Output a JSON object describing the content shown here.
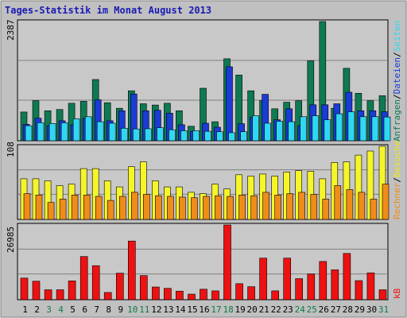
{
  "title": "Tages-Statistik im Monat August 2013",
  "colors": {
    "background": "#c0c0c0",
    "plot_background": "#c8c8c8",
    "title": "#1a1ab4",
    "weekend_day": "#0d7a45",
    "weekday": "#000000",
    "hits": "#0e7a52",
    "files": "#1a3bd6",
    "pages": "#2fd8f2",
    "visits": "#f5f52a",
    "visitors": "#f08c1a",
    "kbytes": "#ee1111"
  },
  "chart_data": [
    {
      "type": "bar",
      "panel": "top",
      "y_tick_label": "2387",
      "ylim": [
        0,
        2387
      ],
      "legend": [
        {
          "label": "Anfragen",
          "color_key": "hits"
        },
        {
          "label": "Dateien",
          "color_key": "files"
        },
        {
          "label": "Seiten",
          "color_key": "pages"
        }
      ],
      "categories": [
        "1",
        "2",
        "3",
        "4",
        "5",
        "6",
        "7",
        "8",
        "9",
        "10",
        "11",
        "12",
        "13",
        "14",
        "15",
        "16",
        "17",
        "18",
        "19",
        "20",
        "21",
        "22",
        "23",
        "24",
        "25",
        "26",
        "27",
        "28",
        "29",
        "30",
        "31"
      ],
      "series": [
        {
          "name": "Anfragen",
          "color_key": "hits",
          "values": [
            575,
            800,
            600,
            625,
            750,
            790,
            1225,
            760,
            650,
            1000,
            740,
            715,
            750,
            600,
            290,
            1050,
            380,
            1640,
            1315,
            1000,
            800,
            640,
            770,
            800,
            1600,
            2387,
            650,
            1450,
            950,
            800,
            900
          ]
        },
        {
          "name": "Dateien",
          "color_key": "files",
          "values": [
            330,
            450,
            300,
            400,
            320,
            450,
            820,
            400,
            600,
            935,
            600,
            610,
            550,
            320,
            190,
            350,
            270,
            1480,
            340,
            470,
            930,
            420,
            640,
            300,
            720,
            720,
            740,
            970,
            600,
            600,
            580
          ]
        },
        {
          "name": "Seiten",
          "color_key": "pages",
          "values": [
            300,
            360,
            345,
            360,
            440,
            480,
            380,
            350,
            250,
            235,
            240,
            260,
            220,
            200,
            200,
            190,
            180,
            160,
            180,
            500,
            350,
            390,
            380,
            480,
            500,
            420,
            540,
            580,
            480,
            480,
            475
          ]
        }
      ]
    },
    {
      "type": "bar",
      "panel": "middle",
      "y_tick_label": "108",
      "ylim": [
        0,
        108
      ],
      "legend": [
        {
          "label": "Besuche",
          "color_key": "visits"
        },
        {
          "label": "Rechner",
          "color_key": "visitors"
        }
      ],
      "categories": [
        "1",
        "2",
        "3",
        "4",
        "5",
        "6",
        "7",
        "8",
        "9",
        "10",
        "11",
        "12",
        "13",
        "14",
        "15",
        "16",
        "17",
        "18",
        "19",
        "20",
        "21",
        "22",
        "23",
        "24",
        "25",
        "26",
        "27",
        "28",
        "29",
        "30",
        "31"
      ],
      "series": [
        {
          "name": "Besuche",
          "color_key": "visits",
          "values": [
            60,
            60,
            57,
            50,
            52,
            75,
            75,
            57,
            48,
            78,
            85,
            57,
            48,
            48,
            40,
            38,
            52,
            45,
            66,
            64,
            67,
            64,
            70,
            72,
            71,
            60,
            84,
            85,
            95,
            101,
            108
          ]
        },
        {
          "name": "Rechner",
          "color_key": "visitors",
          "values": [
            38,
            36,
            25,
            30,
            36,
            36,
            34,
            28,
            34,
            40,
            37,
            35,
            34,
            33,
            32,
            34,
            35,
            34,
            36,
            35,
            40,
            36,
            38,
            40,
            37,
            30,
            50,
            44,
            40,
            30,
            52
          ]
        }
      ]
    },
    {
      "type": "bar",
      "panel": "bottom",
      "y_tick_label": "26985",
      "ylim": [
        0,
        26985
      ],
      "legend": [
        {
          "label": "kB",
          "color_key": "kbytes"
        }
      ],
      "categories": [
        "1",
        "2",
        "3",
        "4",
        "5",
        "6",
        "7",
        "8",
        "9",
        "10",
        "11",
        "12",
        "13",
        "14",
        "15",
        "16",
        "17",
        "18",
        "19",
        "20",
        "21",
        "22",
        "23",
        "24",
        "25",
        "26",
        "27",
        "28",
        "29",
        "30",
        "31"
      ],
      "series": [
        {
          "name": "kB",
          "color_key": "kbytes",
          "values": [
            7800,
            6700,
            3600,
            3600,
            6800,
            15600,
            12300,
            2600,
            9600,
            21200,
            8700,
            4600,
            4100,
            3100,
            2000,
            3800,
            3200,
            26985,
            5800,
            4700,
            15000,
            3200,
            15000,
            7600,
            9300,
            13800,
            10800,
            16700,
            6900,
            9700,
            3600
          ]
        }
      ]
    }
  ]
}
